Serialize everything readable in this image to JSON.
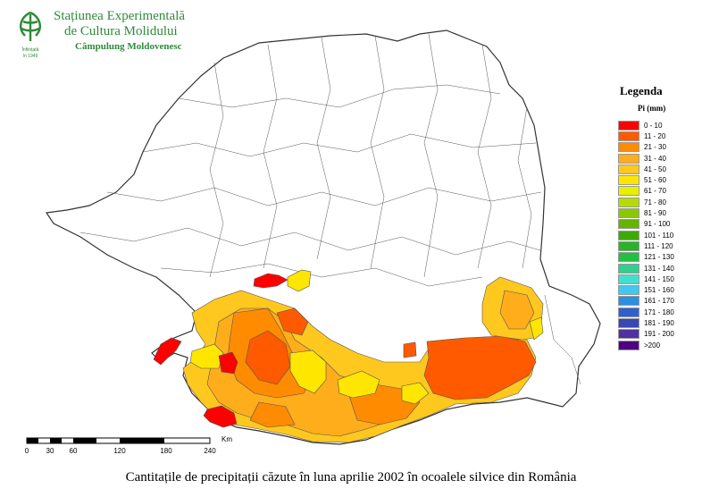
{
  "header": {
    "line1": "Stațiunea Experimentală",
    "line2": "de Cultura Molidului",
    "line3": "Câmpulung Moldovenesc",
    "logo_text": "Înființată în 1949"
  },
  "legend": {
    "title": "Legenda",
    "unit": "Pi (mm)",
    "items": [
      {
        "label": "0 - 10",
        "color": "#ff0000"
      },
      {
        "label": "11 - 20",
        "color": "#ff5a00"
      },
      {
        "label": "21 - 30",
        "color": "#ff8c00"
      },
      {
        "label": "31 - 40",
        "color": "#ffad1a"
      },
      {
        "label": "41 - 50",
        "color": "#ffc81e"
      },
      {
        "label": "51 - 60",
        "color": "#ffe600"
      },
      {
        "label": "61 - 70",
        "color": "#e6f000"
      },
      {
        "label": "71 - 80",
        "color": "#b4dc00"
      },
      {
        "label": "81 - 90",
        "color": "#8cc800"
      },
      {
        "label": "91 - 100",
        "color": "#64b400"
      },
      {
        "label": "101 - 110",
        "color": "#3caa00"
      },
      {
        "label": "111 - 120",
        "color": "#28b428"
      },
      {
        "label": "121 - 130",
        "color": "#20c040"
      },
      {
        "label": "131 - 140",
        "color": "#30d090"
      },
      {
        "label": "141 - 150",
        "color": "#40e0d0"
      },
      {
        "label": "151 - 160",
        "color": "#40c8f0"
      },
      {
        "label": "161 - 170",
        "color": "#2c90e0"
      },
      {
        "label": "171 - 180",
        "color": "#3060d0"
      },
      {
        "label": "181 - 190",
        "color": "#3848b0"
      },
      {
        "label": "191 - 200",
        "color": "#5030a0"
      },
      {
        "label": ">200",
        "color": "#500080"
      }
    ]
  },
  "scalebar": {
    "unit": "Km",
    "ticks": [
      "0",
      "30",
      "60",
      "120",
      "180",
      "240"
    ]
  },
  "caption": "Cantitațile de precipitații căzute în luna aprilie 2002 în ocoalele silvice din România",
  "map": {
    "colors": {
      "outline": "#333333",
      "background": "#ffffff",
      "c0_10": "#ff0000",
      "c11_20": "#ff5a00",
      "c21_30": "#ff8c00",
      "c31_40": "#ffad1a",
      "c41_50": "#ffc81e",
      "c51_60": "#ffe600"
    }
  }
}
